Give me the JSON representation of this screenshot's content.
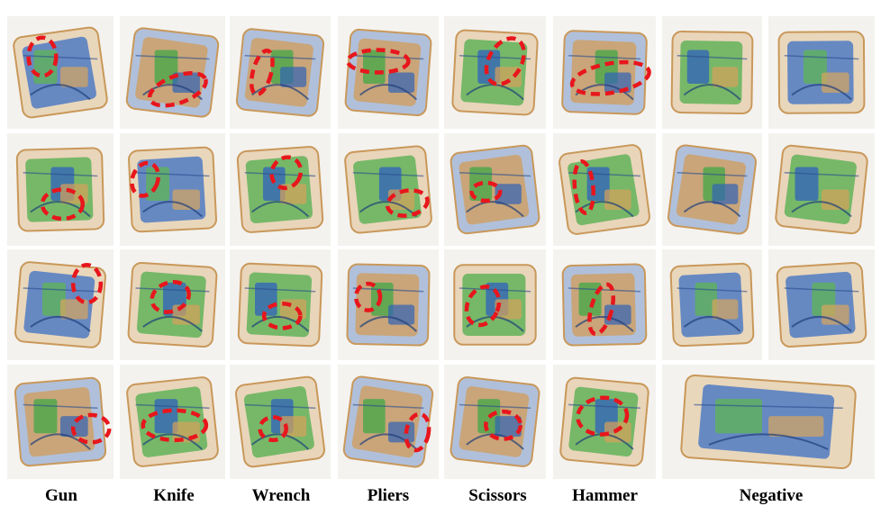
{
  "figure": {
    "column_labels": [
      "Gun",
      "Knife",
      "Wrench",
      "Pliers",
      "Scissors",
      "Hammer",
      "Negative"
    ],
    "colors": {
      "annotation": "#e8161c",
      "organic": "#d9a25a",
      "metal": "#2e5fbf",
      "mixed": "#3fa040",
      "background": "#f2f1ee"
    },
    "annotation_style": "red dashed ellipse marking the threat item",
    "tiles": [
      {
        "category": "Gun",
        "row": 1,
        "hue": "blue",
        "annotated": true
      },
      {
        "category": "Knife",
        "row": 1,
        "hue": "orange",
        "annotated": true
      },
      {
        "category": "Wrench",
        "row": 1,
        "hue": "orange",
        "annotated": true
      },
      {
        "category": "Pliers",
        "row": 1,
        "hue": "orange",
        "annotated": true
      },
      {
        "category": "Scissors",
        "row": 1,
        "hue": "green",
        "annotated": true
      },
      {
        "category": "Hammer",
        "row": 1,
        "hue": "orange",
        "annotated": true
      },
      {
        "category": "Negative",
        "row": 1,
        "hue": "green",
        "annotated": false
      },
      {
        "category": "Negative",
        "row": 1,
        "hue": "blue",
        "annotated": false
      },
      {
        "category": "Gun",
        "row": 2,
        "hue": "green",
        "annotated": true
      },
      {
        "category": "Knife",
        "row": 2,
        "hue": "blue",
        "annotated": true
      },
      {
        "category": "Wrench",
        "row": 2,
        "hue": "green",
        "annotated": true
      },
      {
        "category": "Pliers",
        "row": 2,
        "hue": "green",
        "annotated": true
      },
      {
        "category": "Scissors",
        "row": 2,
        "hue": "orange",
        "annotated": true
      },
      {
        "category": "Hammer",
        "row": 2,
        "hue": "green",
        "annotated": true
      },
      {
        "category": "Negative",
        "row": 2,
        "hue": "orange",
        "annotated": false
      },
      {
        "category": "Negative",
        "row": 2,
        "hue": "green",
        "annotated": false
      },
      {
        "category": "Gun",
        "row": 3,
        "hue": "blue",
        "annotated": true
      },
      {
        "category": "Knife",
        "row": 3,
        "hue": "green",
        "annotated": true
      },
      {
        "category": "Wrench",
        "row": 3,
        "hue": "green",
        "annotated": true
      },
      {
        "category": "Pliers",
        "row": 3,
        "hue": "orange",
        "annotated": true
      },
      {
        "category": "Scissors",
        "row": 3,
        "hue": "green",
        "annotated": true
      },
      {
        "category": "Hammer",
        "row": 3,
        "hue": "orange",
        "annotated": true
      },
      {
        "category": "Negative",
        "row": 3,
        "hue": "blue",
        "annotated": false
      },
      {
        "category": "Negative",
        "row": 3,
        "hue": "blue",
        "annotated": false
      },
      {
        "category": "Gun",
        "row": 4,
        "hue": "orange",
        "annotated": true
      },
      {
        "category": "Knife",
        "row": 4,
        "hue": "green",
        "annotated": true
      },
      {
        "category": "Wrench",
        "row": 4,
        "hue": "green",
        "annotated": true
      },
      {
        "category": "Pliers",
        "row": 4,
        "hue": "orange",
        "annotated": true
      },
      {
        "category": "Scissors",
        "row": 4,
        "hue": "orange",
        "annotated": true
      },
      {
        "category": "Hammer",
        "row": 4,
        "hue": "green",
        "annotated": true
      },
      {
        "category": "Negative",
        "row": 4,
        "hue": "blue",
        "annotated": false
      }
    ]
  }
}
